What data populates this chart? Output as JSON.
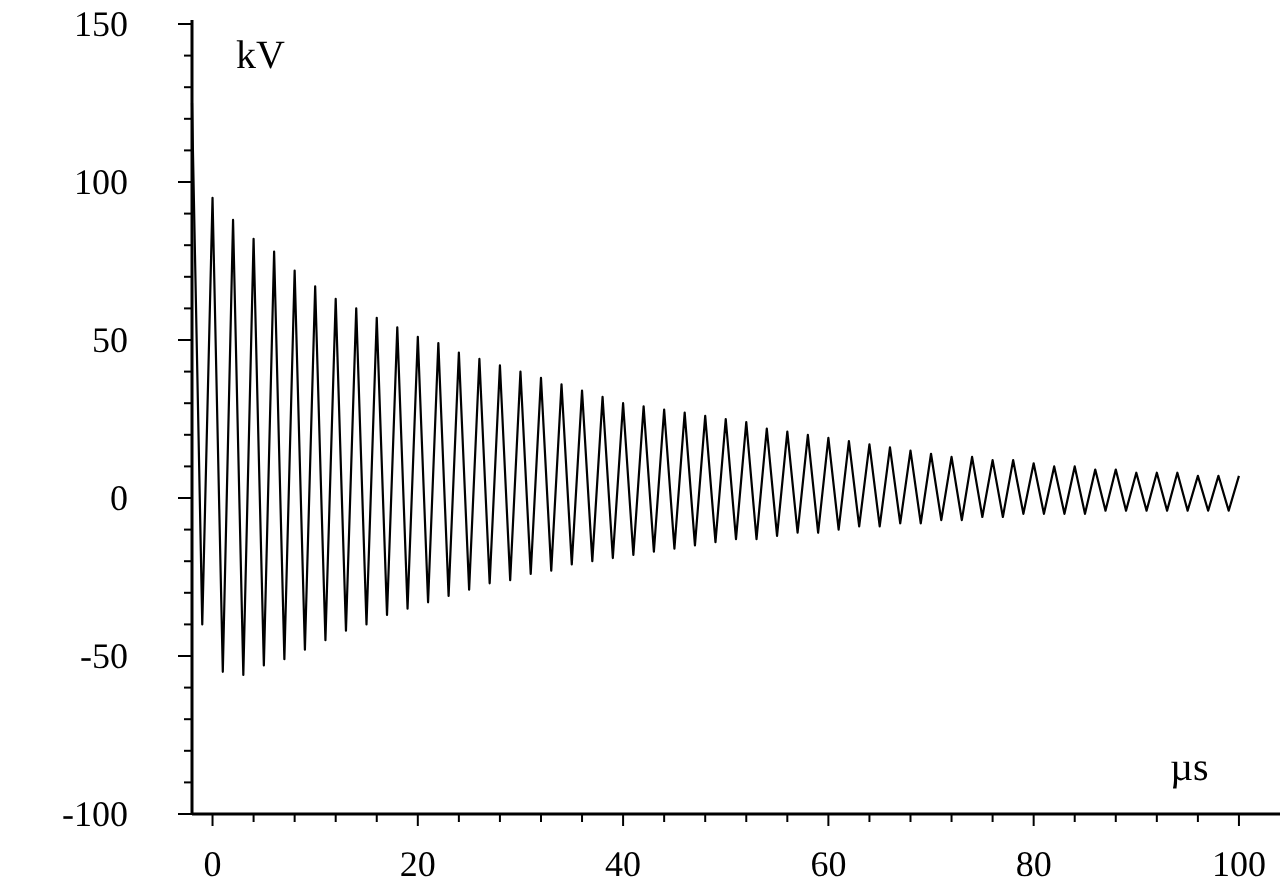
{
  "chart_data": {
    "type": "line",
    "xlabel": "µs",
    "ylabel": "kV",
    "xlim": [
      -2,
      104
    ],
    "ylim": [
      -100,
      150
    ],
    "xticks": [
      0,
      {
        "value": 4,
        "label": null
      },
      {
        "value": 8,
        "label": null
      },
      {
        "value": 12,
        "label": null
      },
      {
        "value": 16,
        "label": null
      },
      20,
      {
        "value": 24,
        "label": null
      },
      {
        "value": 28,
        "label": null
      },
      {
        "value": 32,
        "label": null
      },
      {
        "value": 36,
        "label": null
      },
      40,
      {
        "value": 44,
        "label": null
      },
      {
        "value": 48,
        "label": null
      },
      {
        "value": 52,
        "label": null
      },
      {
        "value": 56,
        "label": null
      },
      60,
      {
        "value": 64,
        "label": null
      },
      {
        "value": 68,
        "label": null
      },
      {
        "value": 72,
        "label": null
      },
      {
        "value": 76,
        "label": null
      },
      80,
      {
        "value": 84,
        "label": null
      },
      {
        "value": 88,
        "label": null
      },
      {
        "value": 92,
        "label": null
      },
      {
        "value": 96,
        "label": null
      },
      100
    ],
    "yticks": [
      -100,
      {
        "value": -90,
        "label": null
      },
      {
        "value": -80,
        "label": null
      },
      {
        "value": -70,
        "label": null
      },
      {
        "value": -60,
        "label": null
      },
      -50,
      {
        "value": -40,
        "label": null
      },
      {
        "value": -30,
        "label": null
      },
      {
        "value": -20,
        "label": null
      },
      {
        "value": -10,
        "label": null
      },
      0,
      {
        "value": 10,
        "label": null
      },
      {
        "value": 20,
        "label": null
      },
      {
        "value": 30,
        "label": null
      },
      {
        "value": 40,
        "label": null
      },
      50,
      {
        "value": 60,
        "label": null
      },
      {
        "value": 70,
        "label": null
      },
      {
        "value": 80,
        "label": null
      },
      {
        "value": 90,
        "label": null
      },
      100,
      {
        "value": 110,
        "label": null
      },
      {
        "value": 120,
        "label": null
      },
      {
        "value": 130,
        "label": null
      },
      {
        "value": 140,
        "label": null
      },
      150
    ],
    "grid": false,
    "marker": "none",
    "line_style": "solid",
    "x": [
      -2,
      -1,
      0,
      1,
      2,
      3,
      4,
      5,
      6,
      7,
      8,
      9,
      10,
      11,
      12,
      13,
      14,
      15,
      16,
      17,
      18,
      19,
      20,
      21,
      22,
      23,
      24,
      25,
      26,
      27,
      28,
      29,
      30,
      31,
      32,
      33,
      34,
      35,
      36,
      37,
      38,
      39,
      40,
      41,
      42,
      43,
      44,
      45,
      46,
      47,
      48,
      49,
      50,
      51,
      52,
      53,
      54,
      55,
      56,
      57,
      58,
      59,
      60,
      61,
      62,
      63,
      64,
      65,
      66,
      67,
      68,
      69,
      70,
      71,
      72,
      73,
      74,
      75,
      76,
      77,
      78,
      79,
      80,
      81,
      82,
      83,
      84,
      85,
      86,
      87,
      88,
      89,
      90,
      91,
      92,
      93,
      94,
      95,
      96,
      97,
      98,
      99,
      100
    ],
    "series": [
      {
        "color": "#000000",
        "values": [
          125,
          -40,
          95,
          -55,
          88,
          -56,
          82,
          -53,
          78,
          -51,
          72,
          -48,
          67,
          -45,
          63,
          -42,
          60,
          -40,
          57,
          -37,
          54,
          -35,
          51,
          -33,
          49,
          -31,
          46,
          -29,
          44,
          -27,
          42,
          -26,
          40,
          -24,
          38,
          -23,
          36,
          -21,
          34,
          -20,
          32,
          -19,
          30,
          -18,
          29,
          -17,
          28,
          -16,
          27,
          -15,
          26,
          -14,
          25,
          -13,
          24,
          -13,
          22,
          -12,
          21,
          -11,
          20,
          -11,
          19,
          -10,
          18,
          -9,
          17,
          -9,
          16,
          -8,
          15,
          -8,
          14,
          -7,
          13,
          -7,
          13,
          -6,
          12,
          -6,
          12,
          -5,
          11,
          -5,
          10,
          -5,
          10,
          -5,
          9,
          -4,
          9,
          -4,
          8,
          -4,
          8,
          -4,
          8,
          -4,
          7,
          -4,
          7,
          -4,
          7
        ]
      }
    ]
  }
}
